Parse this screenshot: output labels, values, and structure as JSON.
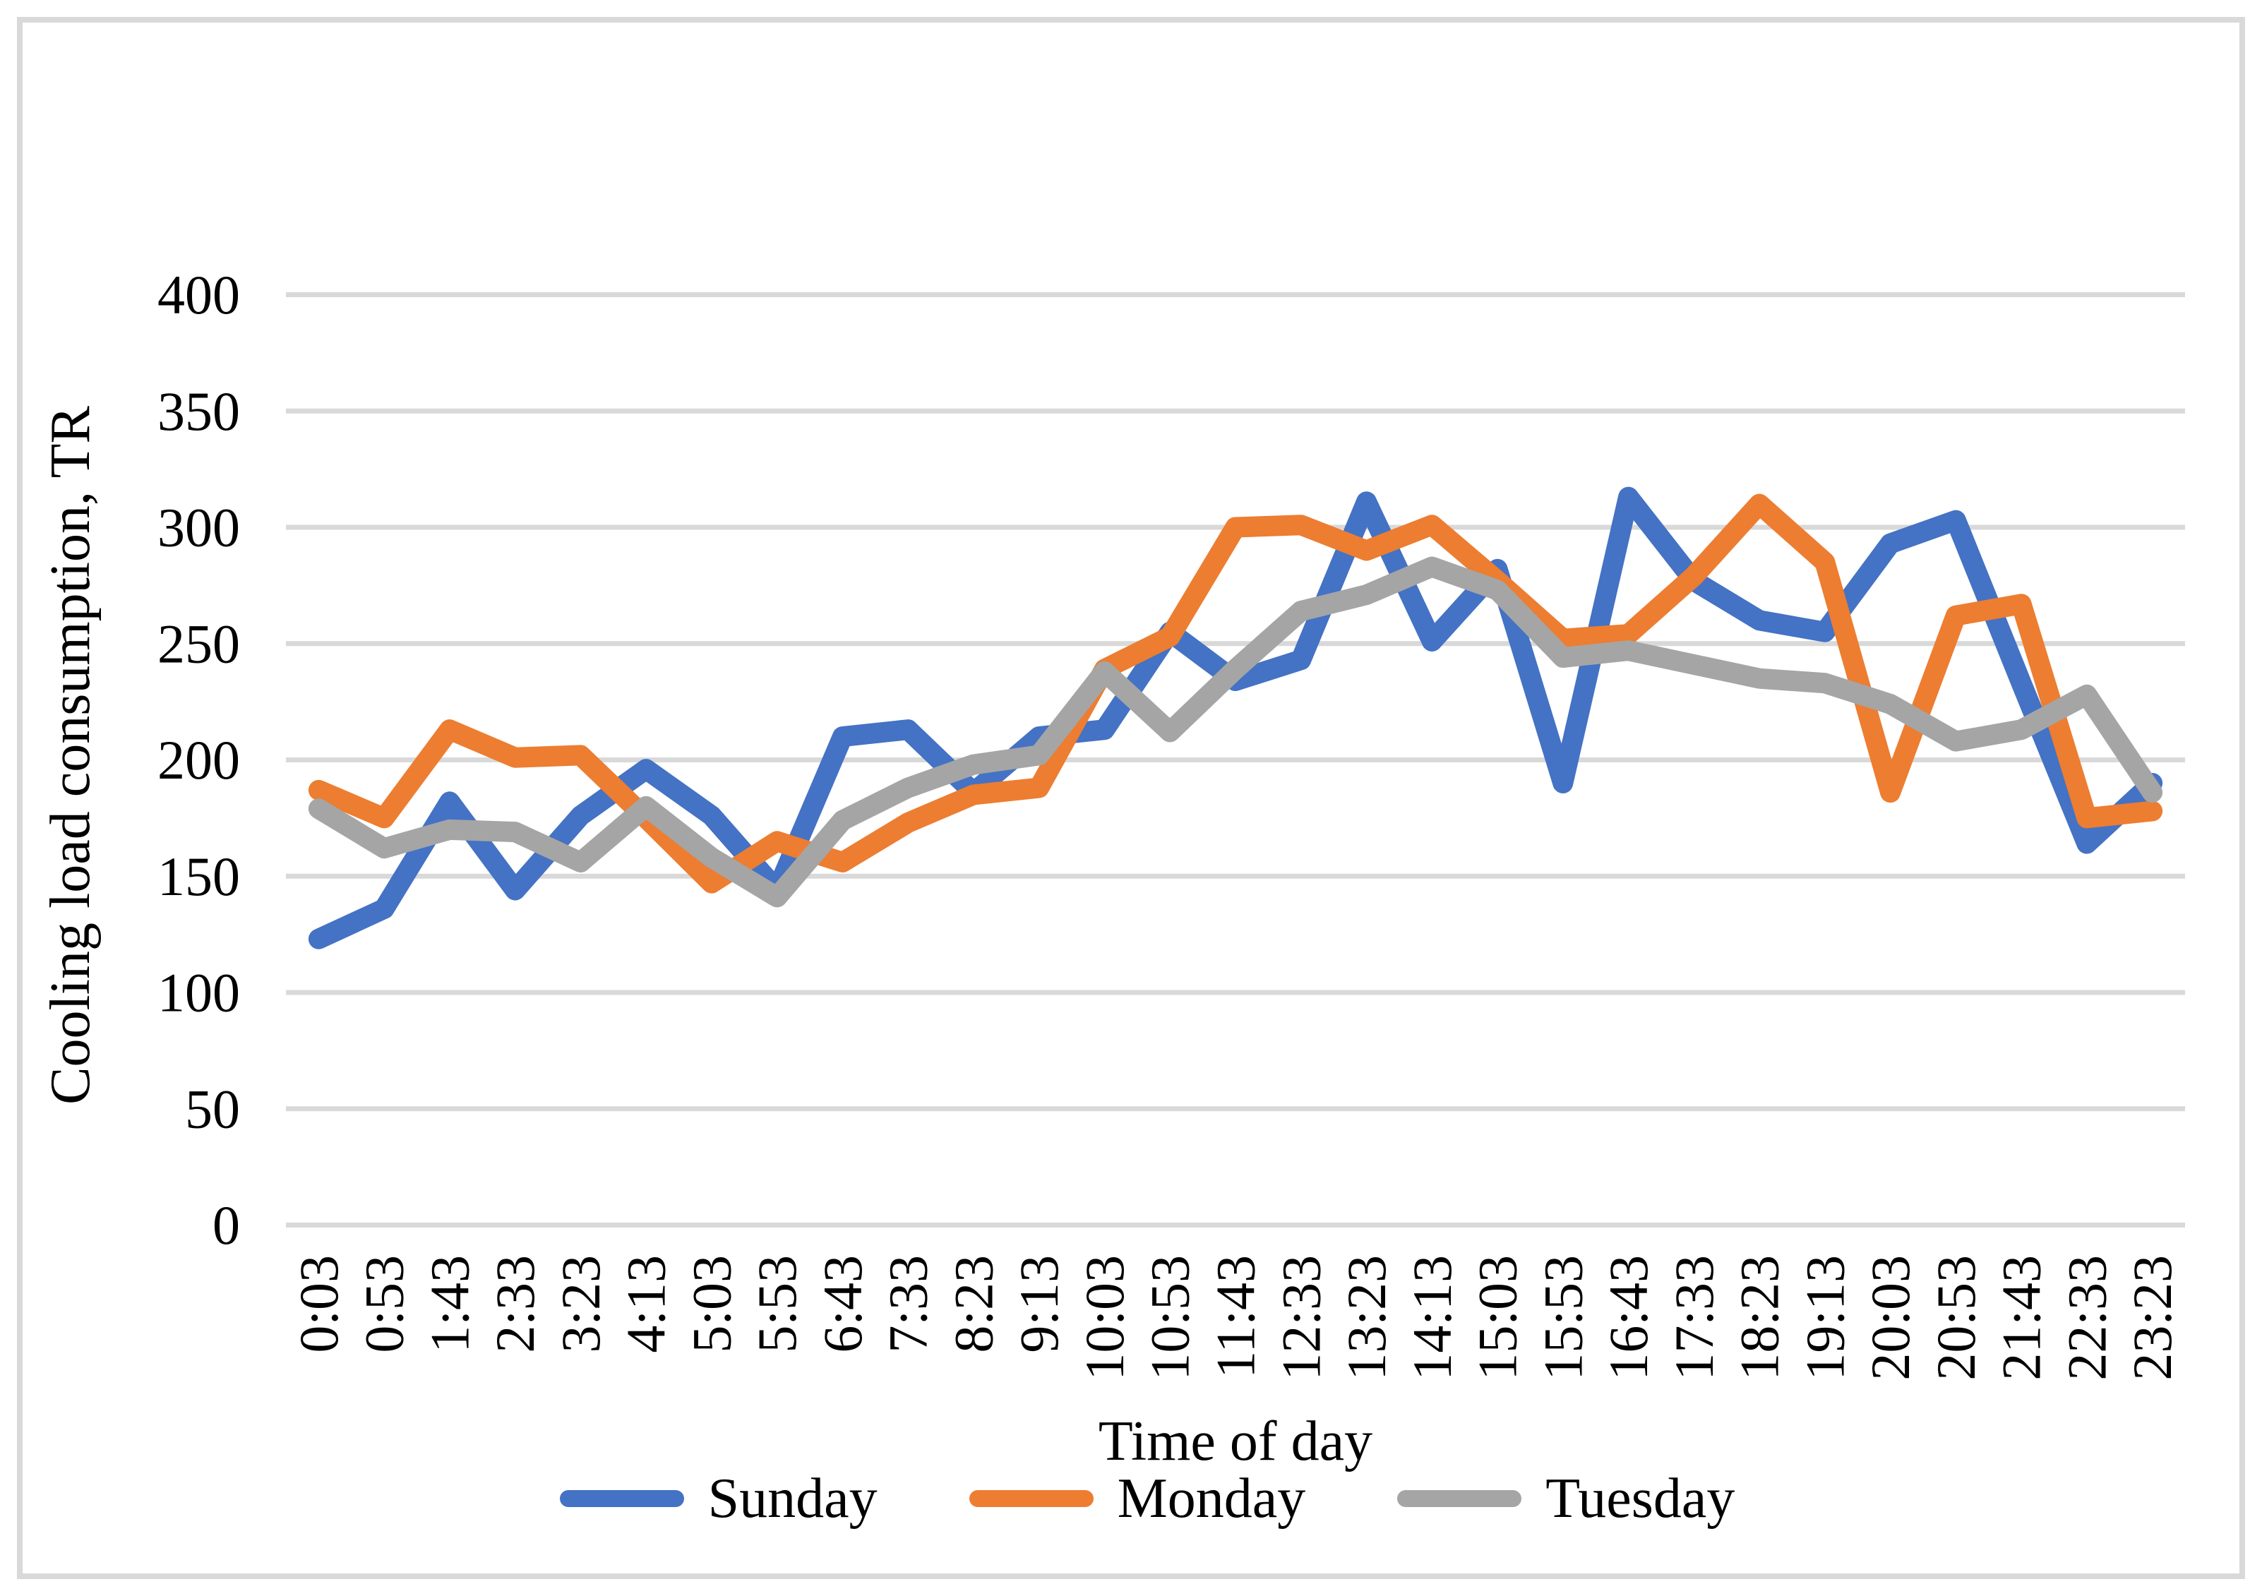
{
  "figure": {
    "background_color": "#FFFFFF",
    "frame_color": "#D9D9D9"
  },
  "chart_data": {
    "type": "line",
    "title": "",
    "xlabel": "Time of day",
    "ylabel": "Cooling load consumption, TR",
    "ylim": [
      0,
      400
    ],
    "yticks": [
      0,
      50,
      100,
      150,
      200,
      250,
      300,
      350,
      400
    ],
    "grid": true,
    "gridline_color": "#D9D9D9",
    "tick_label_color": "#000000",
    "legend_position": "bottom",
    "categories": [
      "0:03",
      "0:53",
      "1:43",
      "2:33",
      "3:23",
      "4:13",
      "5:03",
      "5:53",
      "6:43",
      "7:33",
      "8:23",
      "9:13",
      "10:03",
      "10:53",
      "11:43",
      "12:33",
      "13:23",
      "14:13",
      "15:03",
      "15:53",
      "16:43",
      "17:33",
      "18:23",
      "19:13",
      "20:03",
      "20:53",
      "21:43",
      "22:33",
      "23:23"
    ],
    "series": [
      {
        "name": "Sunday",
        "color": "#4472C4",
        "values": [
          123,
          136,
          182,
          144,
          176,
          196,
          176,
          144,
          210,
          213,
          186,
          210,
          213,
          255,
          234,
          243,
          311,
          251,
          282,
          190,
          313,
          277,
          260,
          255,
          293,
          303,
          233,
          164,
          190
        ]
      },
      {
        "name": "Monday",
        "color": "#ED7D31",
        "values": [
          187,
          175,
          213,
          201,
          202,
          175,
          147,
          165,
          156,
          173,
          185,
          188,
          239,
          253,
          300,
          301,
          290,
          301,
          277,
          252,
          254,
          279,
          310,
          285,
          186,
          262,
          267,
          175,
          178
        ]
      },
      {
        "name": "Tuesday",
        "color": "#A5A5A5",
        "values": [
          179,
          162,
          170,
          169,
          156,
          180,
          158,
          141,
          174,
          188,
          198,
          202,
          238,
          212,
          239,
          264,
          271,
          283,
          273,
          244,
          247,
          241,
          235,
          233,
          224,
          208,
          213,
          228,
          186
        ]
      }
    ]
  }
}
